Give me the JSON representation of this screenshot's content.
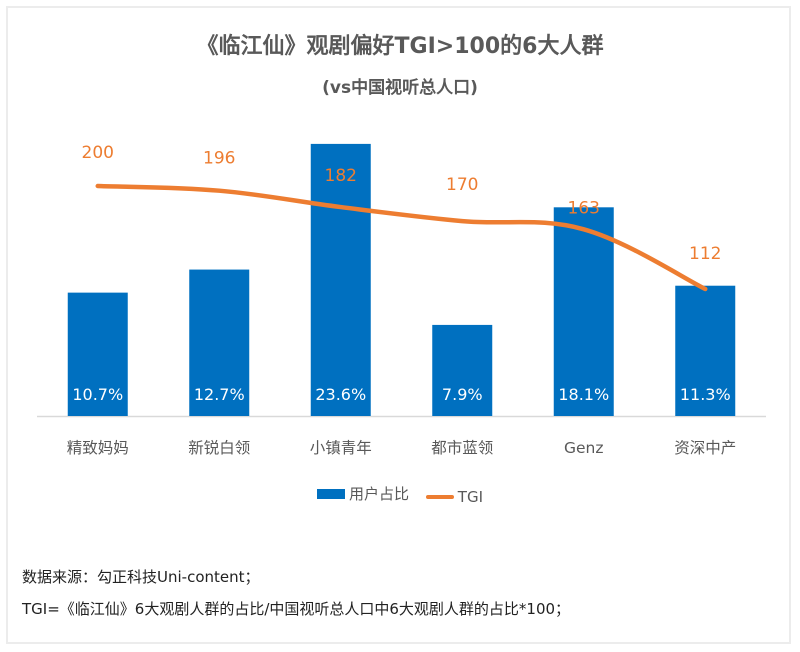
{
  "colors": {
    "bar": "#0070c0",
    "line": "#ed7d31",
    "axis": "#d9d9d9",
    "text": "#595959"
  },
  "chart_data": {
    "type": "bar",
    "title": "《临江仙》观剧偏好TGI>100的6大人群",
    "subtitle": "(vs中国视听总人口)",
    "categories": [
      "精致妈妈",
      "新锐白领",
      "小镇青年",
      "都市蓝领",
      "Genz",
      "资深中产"
    ],
    "series": [
      {
        "name": "用户占比",
        "type": "bar",
        "values": [
          10.7,
          12.7,
          23.6,
          7.9,
          18.1,
          11.3
        ],
        "labels": [
          "10.7%",
          "12.7%",
          "23.6%",
          "7.9%",
          "18.1%",
          "11.3%"
        ]
      },
      {
        "name": "TGI",
        "type": "line",
        "smooth": true,
        "values": [
          200,
          196,
          182,
          170,
          163,
          112
        ],
        "labels": [
          "200",
          "196",
          "182",
          "170",
          "163",
          "112"
        ]
      }
    ],
    "xlabel": "",
    "ylabel": "",
    "grid": false,
    "legend": "bottom"
  },
  "legend": {
    "bar_label": "用户占比",
    "line_label": "TGI"
  },
  "notes": {
    "source": "数据来源：勾正科技Uni-content；",
    "formula": "TGI=《临江仙》6大观剧人群的占比/中国视听总人口中6大观剧人群的占比*100；"
  }
}
